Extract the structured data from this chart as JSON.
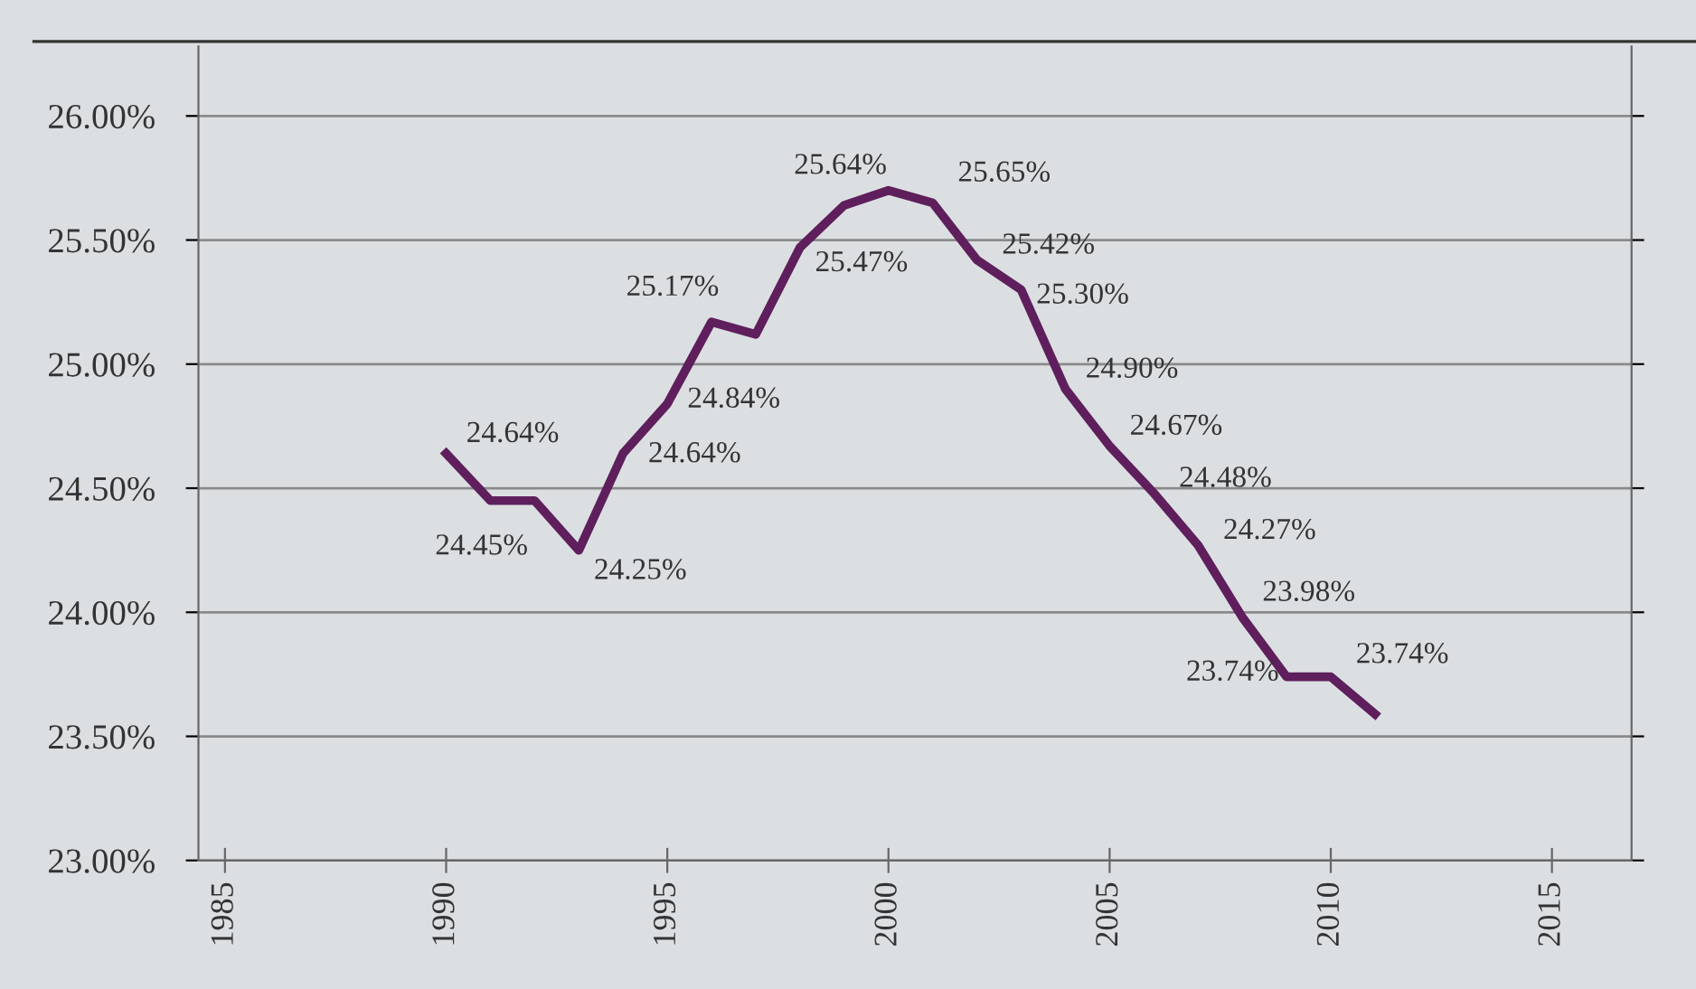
{
  "chart_data": {
    "type": "line",
    "x": [
      1990,
      1991,
      1992,
      1993,
      1994,
      1995,
      1996,
      1997,
      1998,
      1999,
      2000,
      2001,
      2002,
      2003,
      2004,
      2005,
      2006,
      2007,
      2008,
      2009,
      2010,
      2011
    ],
    "series": [
      {
        "color": "#5e1f5c",
        "values": [
          24.64,
          24.45,
          24.45,
          24.25,
          24.64,
          24.84,
          25.17,
          25.12,
          25.47,
          25.64,
          25.7,
          25.65,
          25.42,
          25.3,
          24.9,
          24.67,
          24.48,
          24.27,
          23.98,
          23.74,
          23.74,
          23.59
        ],
        "value_labels": [
          "24.64%",
          "24.45%",
          null,
          "24.25%",
          "24.64%",
          "24.84%",
          "25.17%",
          null,
          "25.47%",
          "25.64%",
          null,
          "25.65%",
          "25.42%",
          "25.30%",
          "24.90%",
          "24.67%",
          "24.48%",
          "24.27%",
          "23.98%",
          "23.74%",
          "23.74%",
          null
        ]
      }
    ],
    "xlim": [
      1984.4,
      2016.8
    ],
    "xticks": [
      1985,
      1990,
      1995,
      2000,
      2005,
      2010,
      2015
    ],
    "ylim": [
      23.0,
      26.28
    ],
    "yticks": [
      {
        "value": 23.0,
        "label": "23.00%"
      },
      {
        "value": 23.5,
        "label": "23.50%"
      },
      {
        "value": 24.0,
        "label": "24.00%"
      },
      {
        "value": 24.5,
        "label": "24.50%"
      },
      {
        "value": 25.0,
        "label": "25.00%"
      },
      {
        "value": 25.5,
        "label": "25.50%"
      },
      {
        "value": 26.0,
        "label": "26.00%"
      }
    ],
    "grid": "y",
    "marker": "none",
    "line_style": "solid"
  }
}
